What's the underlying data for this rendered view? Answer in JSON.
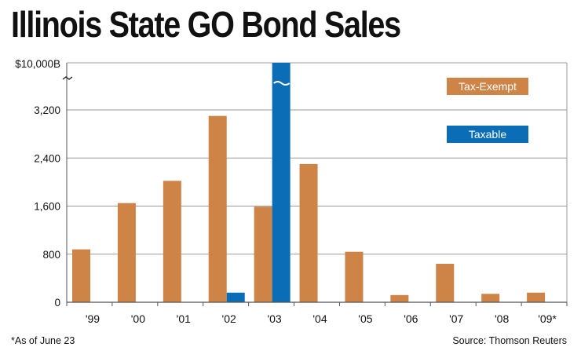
{
  "chart_data": {
    "type": "bar",
    "title": "Illinois State GO Bond Sales",
    "xlabel": "",
    "ylabel": "",
    "categories": [
      "'99",
      "'00",
      "'01",
      "'02",
      "'03",
      "'04",
      "'05",
      "'06",
      "'07",
      "'08",
      "'09*"
    ],
    "series": [
      {
        "name": "Tax-Exempt",
        "color": "#cd8446",
        "values": [
          880,
          1650,
          2020,
          3100,
          1590,
          2300,
          840,
          120,
          640,
          140,
          160
        ]
      },
      {
        "name": "Taxable",
        "color": "#0a6db5",
        "values": [
          0,
          0,
          0,
          160,
          10000,
          0,
          0,
          0,
          0,
          0,
          0
        ]
      }
    ],
    "y_ticks": [
      0,
      800,
      1600,
      2400,
      3200
    ],
    "y_tick_labels": [
      "0",
      "800",
      "1,600",
      "2,400",
      "3,200"
    ],
    "y_break_label": "$10,000B",
    "ylim": [
      0,
      4000
    ],
    "axis_break": true,
    "grid": true,
    "legend": [
      "Tax-Exempt",
      "Taxable"
    ],
    "legend_position": "top-right",
    "footnote": "*As of June 23",
    "source": "Source: Thomson Reuters"
  }
}
